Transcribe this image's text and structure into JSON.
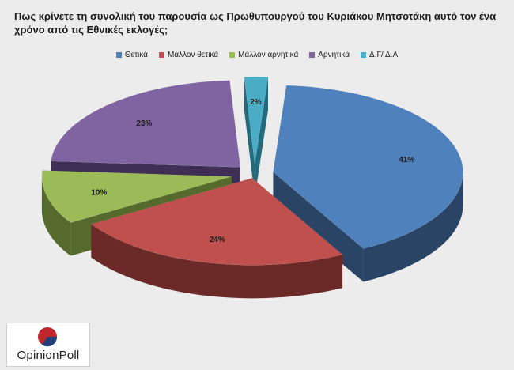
{
  "title": "Πως κρίνετε τη συνολική του παρουσία ως Πρωθυπουργού του Κυριάκου Μητσοτάκη αυτό τον ένα χρόνο από τις Εθνικές εκλογές;",
  "logo": {
    "text": "OpinionPoll",
    "colors": [
      "#c0262c",
      "#1f3f7a"
    ]
  },
  "chart_data": {
    "type": "pie",
    "title": "Πως κρίνετε τη συνολική του παρουσία ως Πρωθυπουργού του Κυριάκου Μητσοτάκη αυτό τον ένα χρόνο από τις Εθνικές εκλογές;",
    "legend_position": "top",
    "exploded": true,
    "three_d": true,
    "slices": [
      {
        "label": "Θετικά",
        "value": 41,
        "display": "41%",
        "color": "#4f81bd",
        "side_color": "#2a4466"
      },
      {
        "label": "Μάλλον θετικά",
        "value": 24,
        "display": "24%",
        "color": "#c0504d",
        "side_color": "#6b2a28"
      },
      {
        "label": "Μάλλον αρνητικά",
        "value": 10,
        "display": "10%",
        "color": "#9bbb59",
        "side_color": "#556a2c"
      },
      {
        "label": "Αρνητικά",
        "value": 23,
        "display": "23%",
        "color": "#8064a2",
        "side_color": "#3f2f55"
      },
      {
        "label": "Δ.Γ/ Δ.Α",
        "value": 2,
        "display": "2%",
        "color": "#4bacc6",
        "side_color": "#236a7d"
      }
    ]
  }
}
